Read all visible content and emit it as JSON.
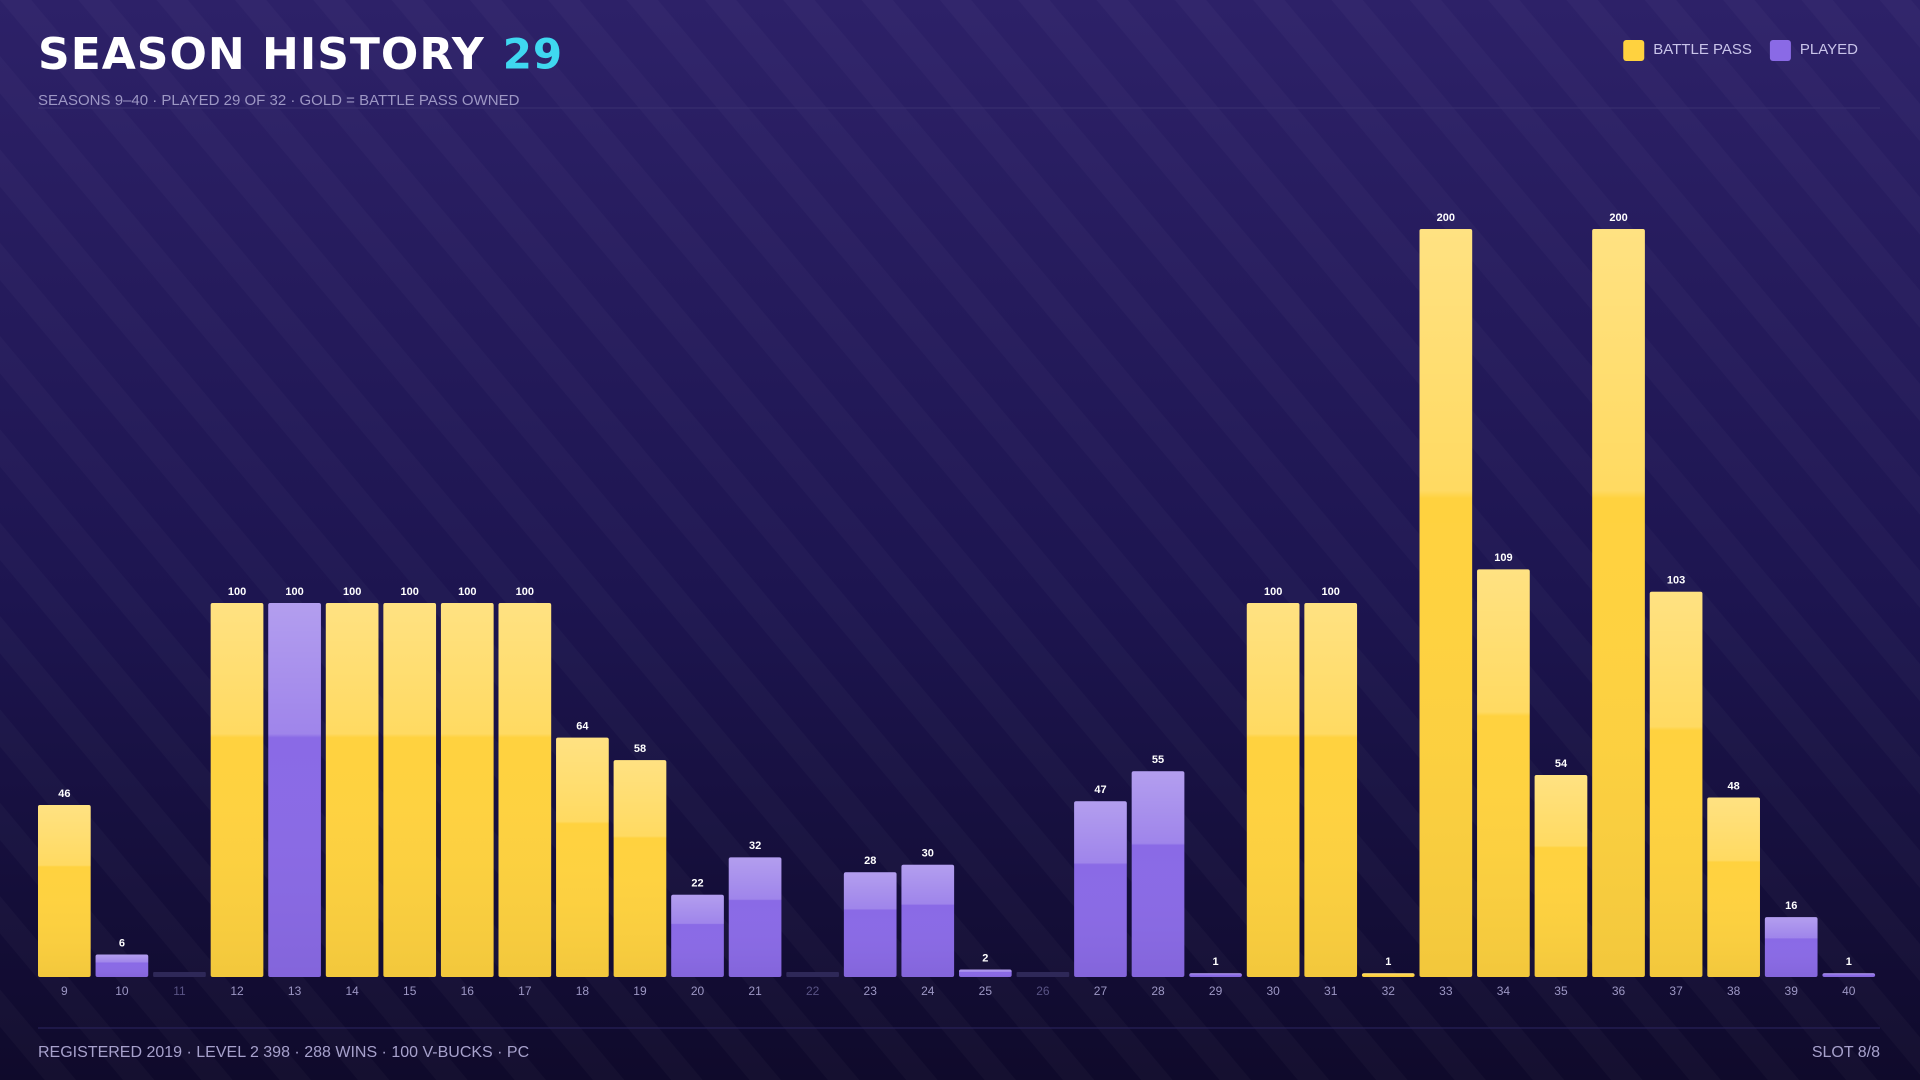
{
  "header": {
    "title": "SEASON HISTORY",
    "count": "29",
    "subtitle": "SEASONS 9–40 · PLAYED 29 OF 32 · GOLD = BATTLE PASS OWNED"
  },
  "chart_data": {
    "type": "bar",
    "categories": [
      "9",
      "10",
      "11",
      "12",
      "13",
      "14",
      "15",
      "16",
      "17",
      "18",
      "19",
      "20",
      "21",
      "22",
      "23",
      "24",
      "25",
      "26",
      "27",
      "28",
      "29",
      "30",
      "31",
      "32",
      "33",
      "34",
      "35",
      "36",
      "37",
      "38",
      "39",
      "40"
    ],
    "series": [
      {
        "name": "BATTLE PASS",
        "color": "#ffd23f",
        "values": [
          46,
          null,
          null,
          100,
          null,
          100,
          100,
          100,
          100,
          64,
          58,
          null,
          null,
          null,
          null,
          null,
          null,
          null,
          null,
          null,
          null,
          100,
          100,
          1,
          200,
          109,
          54,
          200,
          103,
          48,
          null,
          null
        ]
      },
      {
        "name": "PLAYED",
        "color": "#8a6ae6",
        "values": [
          null,
          6,
          null,
          null,
          100,
          null,
          null,
          null,
          null,
          null,
          null,
          22,
          32,
          null,
          28,
          30,
          2,
          null,
          47,
          55,
          1,
          null,
          null,
          null,
          null,
          null,
          null,
          null,
          null,
          null,
          16,
          1
        ]
      }
    ],
    "legend": "top-right"
  },
  "footer": {
    "left": "REGISTERED 2019 · LEVEL 2 398 · 288 WINS · 100 V-BUCKS · PC",
    "right": "SLOT 8/8"
  }
}
